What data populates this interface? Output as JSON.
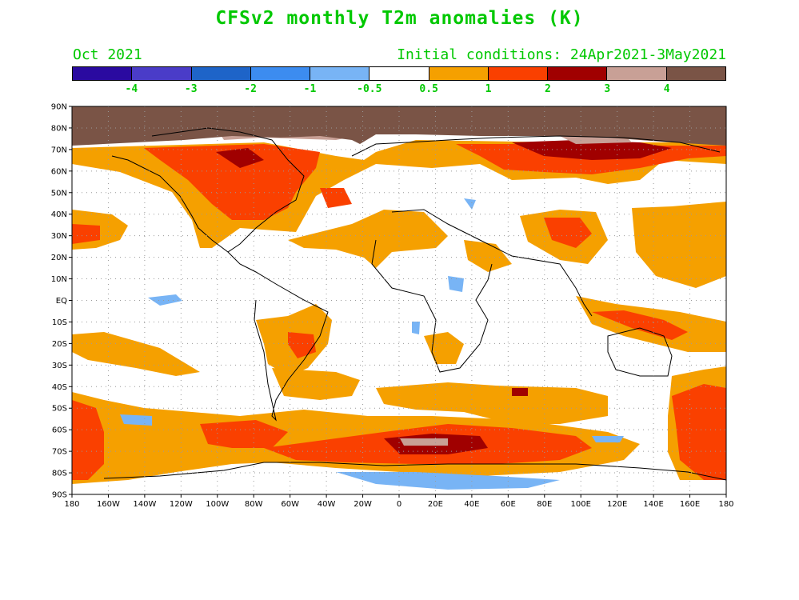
{
  "title": "CFSv2 monthly T2m anomalies (K)",
  "forecast_month": "Oct 2021",
  "initial_conditions": "Initial conditions: 24Apr2021-3May2021",
  "colorbar": {
    "colors": [
      "#2a0aa0",
      "#4a3cc8",
      "#1e64c8",
      "#3c8cf0",
      "#78b4f5",
      "#ffffff",
      "#f5a000",
      "#fa4000",
      "#a00000",
      "#c8a096",
      "#7a5446"
    ],
    "labels": [
      "-4",
      "-3",
      "-2",
      "-1",
      "-0.5",
      "0.5",
      "1",
      "2",
      "3",
      "4"
    ]
  },
  "map": {
    "lat_labels": [
      "90N",
      "80N",
      "70N",
      "60N",
      "50N",
      "40N",
      "30N",
      "20N",
      "10N",
      "EQ",
      "10S",
      "20S",
      "30S",
      "40S",
      "50S",
      "60S",
      "70S",
      "80S",
      "90S"
    ],
    "lon_labels": [
      "180",
      "160W",
      "140W",
      "120W",
      "100W",
      "80W",
      "60W",
      "40W",
      "20W",
      "0",
      "20E",
      "40E",
      "60E",
      "80E",
      "100E",
      "120E",
      "140E",
      "160E",
      "180"
    ]
  }
}
